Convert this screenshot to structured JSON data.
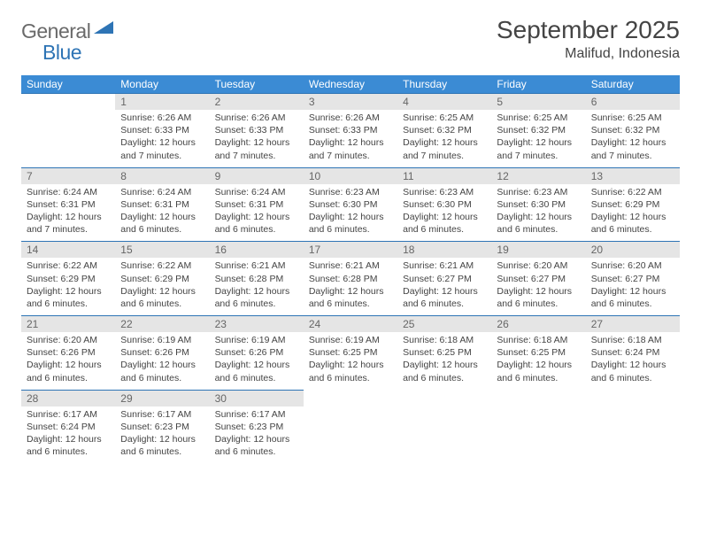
{
  "logo": {
    "general": "General",
    "blue": "Blue"
  },
  "title": "September 2025",
  "location": "Malifud, Indonesia",
  "colors": {
    "header_bg": "#3b8bd4",
    "border": "#2e74b5",
    "daynum_bg": "#e5e5e5",
    "text": "#444444",
    "logo_gray": "#6a6a6a",
    "logo_blue": "#2e74b5"
  },
  "day_headers": [
    "Sunday",
    "Monday",
    "Tuesday",
    "Wednesday",
    "Thursday",
    "Friday",
    "Saturday"
  ],
  "weeks": [
    [
      null,
      {
        "n": "1",
        "sr": "Sunrise: 6:26 AM",
        "ss": "Sunset: 6:33 PM",
        "dl": "Daylight: 12 hours and 7 minutes."
      },
      {
        "n": "2",
        "sr": "Sunrise: 6:26 AM",
        "ss": "Sunset: 6:33 PM",
        "dl": "Daylight: 12 hours and 7 minutes."
      },
      {
        "n": "3",
        "sr": "Sunrise: 6:26 AM",
        "ss": "Sunset: 6:33 PM",
        "dl": "Daylight: 12 hours and 7 minutes."
      },
      {
        "n": "4",
        "sr": "Sunrise: 6:25 AM",
        "ss": "Sunset: 6:32 PM",
        "dl": "Daylight: 12 hours and 7 minutes."
      },
      {
        "n": "5",
        "sr": "Sunrise: 6:25 AM",
        "ss": "Sunset: 6:32 PM",
        "dl": "Daylight: 12 hours and 7 minutes."
      },
      {
        "n": "6",
        "sr": "Sunrise: 6:25 AM",
        "ss": "Sunset: 6:32 PM",
        "dl": "Daylight: 12 hours and 7 minutes."
      }
    ],
    [
      {
        "n": "7",
        "sr": "Sunrise: 6:24 AM",
        "ss": "Sunset: 6:31 PM",
        "dl": "Daylight: 12 hours and 7 minutes."
      },
      {
        "n": "8",
        "sr": "Sunrise: 6:24 AM",
        "ss": "Sunset: 6:31 PM",
        "dl": "Daylight: 12 hours and 6 minutes."
      },
      {
        "n": "9",
        "sr": "Sunrise: 6:24 AM",
        "ss": "Sunset: 6:31 PM",
        "dl": "Daylight: 12 hours and 6 minutes."
      },
      {
        "n": "10",
        "sr": "Sunrise: 6:23 AM",
        "ss": "Sunset: 6:30 PM",
        "dl": "Daylight: 12 hours and 6 minutes."
      },
      {
        "n": "11",
        "sr": "Sunrise: 6:23 AM",
        "ss": "Sunset: 6:30 PM",
        "dl": "Daylight: 12 hours and 6 minutes."
      },
      {
        "n": "12",
        "sr": "Sunrise: 6:23 AM",
        "ss": "Sunset: 6:30 PM",
        "dl": "Daylight: 12 hours and 6 minutes."
      },
      {
        "n": "13",
        "sr": "Sunrise: 6:22 AM",
        "ss": "Sunset: 6:29 PM",
        "dl": "Daylight: 12 hours and 6 minutes."
      }
    ],
    [
      {
        "n": "14",
        "sr": "Sunrise: 6:22 AM",
        "ss": "Sunset: 6:29 PM",
        "dl": "Daylight: 12 hours and 6 minutes."
      },
      {
        "n": "15",
        "sr": "Sunrise: 6:22 AM",
        "ss": "Sunset: 6:29 PM",
        "dl": "Daylight: 12 hours and 6 minutes."
      },
      {
        "n": "16",
        "sr": "Sunrise: 6:21 AM",
        "ss": "Sunset: 6:28 PM",
        "dl": "Daylight: 12 hours and 6 minutes."
      },
      {
        "n": "17",
        "sr": "Sunrise: 6:21 AM",
        "ss": "Sunset: 6:28 PM",
        "dl": "Daylight: 12 hours and 6 minutes."
      },
      {
        "n": "18",
        "sr": "Sunrise: 6:21 AM",
        "ss": "Sunset: 6:27 PM",
        "dl": "Daylight: 12 hours and 6 minutes."
      },
      {
        "n": "19",
        "sr": "Sunrise: 6:20 AM",
        "ss": "Sunset: 6:27 PM",
        "dl": "Daylight: 12 hours and 6 minutes."
      },
      {
        "n": "20",
        "sr": "Sunrise: 6:20 AM",
        "ss": "Sunset: 6:27 PM",
        "dl": "Daylight: 12 hours and 6 minutes."
      }
    ],
    [
      {
        "n": "21",
        "sr": "Sunrise: 6:20 AM",
        "ss": "Sunset: 6:26 PM",
        "dl": "Daylight: 12 hours and 6 minutes."
      },
      {
        "n": "22",
        "sr": "Sunrise: 6:19 AM",
        "ss": "Sunset: 6:26 PM",
        "dl": "Daylight: 12 hours and 6 minutes."
      },
      {
        "n": "23",
        "sr": "Sunrise: 6:19 AM",
        "ss": "Sunset: 6:26 PM",
        "dl": "Daylight: 12 hours and 6 minutes."
      },
      {
        "n": "24",
        "sr": "Sunrise: 6:19 AM",
        "ss": "Sunset: 6:25 PM",
        "dl": "Daylight: 12 hours and 6 minutes."
      },
      {
        "n": "25",
        "sr": "Sunrise: 6:18 AM",
        "ss": "Sunset: 6:25 PM",
        "dl": "Daylight: 12 hours and 6 minutes."
      },
      {
        "n": "26",
        "sr": "Sunrise: 6:18 AM",
        "ss": "Sunset: 6:25 PM",
        "dl": "Daylight: 12 hours and 6 minutes."
      },
      {
        "n": "27",
        "sr": "Sunrise: 6:18 AM",
        "ss": "Sunset: 6:24 PM",
        "dl": "Daylight: 12 hours and 6 minutes."
      }
    ],
    [
      {
        "n": "28",
        "sr": "Sunrise: 6:17 AM",
        "ss": "Sunset: 6:24 PM",
        "dl": "Daylight: 12 hours and 6 minutes."
      },
      {
        "n": "29",
        "sr": "Sunrise: 6:17 AM",
        "ss": "Sunset: 6:23 PM",
        "dl": "Daylight: 12 hours and 6 minutes."
      },
      {
        "n": "30",
        "sr": "Sunrise: 6:17 AM",
        "ss": "Sunset: 6:23 PM",
        "dl": "Daylight: 12 hours and 6 minutes."
      },
      null,
      null,
      null,
      null
    ]
  ]
}
